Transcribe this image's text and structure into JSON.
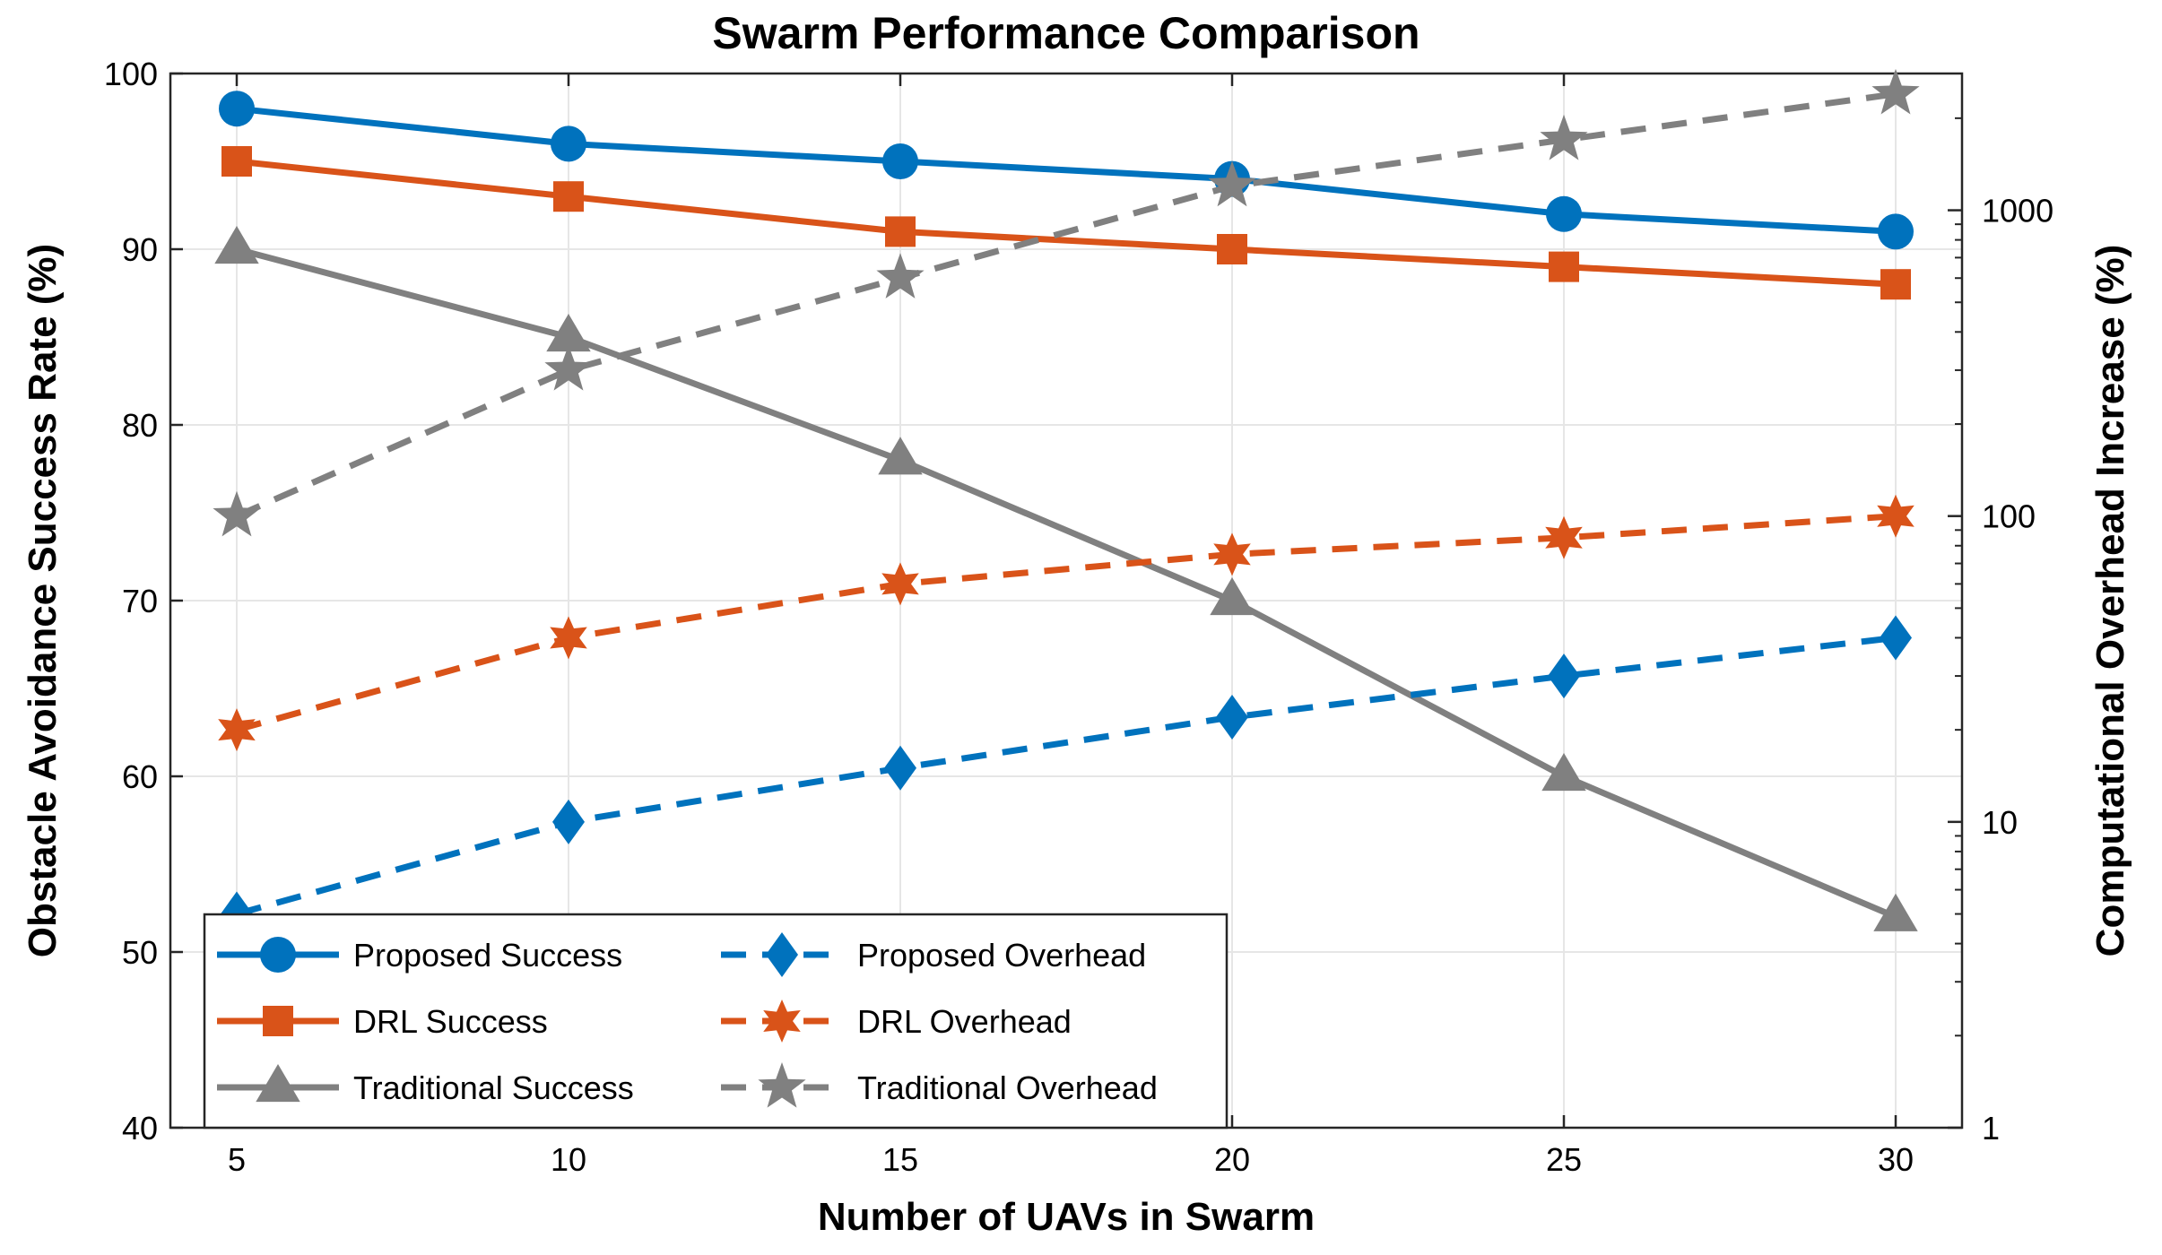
{
  "chart_data": {
    "type": "line",
    "title": "Swarm Performance Comparison",
    "xlabel": "Number of UAVs in Swarm",
    "ylabel_left": "Obstacle Avoidance Success Rate (%)",
    "ylabel_right": "Computational Overhead Increase (%)",
    "x": [
      5,
      10,
      15,
      20,
      25,
      30
    ],
    "x_ticks": [
      "5",
      "10",
      "15",
      "20",
      "25",
      "30"
    ],
    "xlim": [
      4,
      31
    ],
    "ylim_left": [
      40,
      100
    ],
    "y_ticks_left": [
      "40",
      "50",
      "60",
      "70",
      "80",
      "90",
      "100"
    ],
    "yscale_right": "log",
    "ylim_right": [
      1,
      2800
    ],
    "y_ticks_right": [
      "1",
      "10",
      "100",
      "1000"
    ],
    "grid": true,
    "legend_position": "bottom-left",
    "legend_columns": 2,
    "series": [
      {
        "name": "Proposed Success",
        "axis": "left",
        "values": [
          98,
          96,
          95,
          94,
          92,
          91
        ],
        "color": "#0072BD",
        "style": "solid",
        "marker": "circle"
      },
      {
        "name": "DRL Success",
        "axis": "left",
        "values": [
          95,
          93,
          91,
          90,
          89,
          88
        ],
        "color": "#D95319",
        "style": "solid",
        "marker": "square"
      },
      {
        "name": "Traditional Success",
        "axis": "left",
        "values": [
          90,
          85,
          78,
          70,
          60,
          52
        ],
        "color": "#808080",
        "style": "solid",
        "marker": "triangle"
      },
      {
        "name": "Proposed Overhead",
        "axis": "right",
        "values": [
          5,
          10,
          15,
          22,
          30,
          40
        ],
        "color": "#0072BD",
        "style": "dashed",
        "marker": "diamond"
      },
      {
        "name": "DRL Overhead",
        "axis": "right",
        "values": [
          20,
          40,
          60,
          75,
          85,
          100
        ],
        "color": "#D95319",
        "style": "dashed",
        "marker": "hexagram"
      },
      {
        "name": "Traditional Overhead",
        "axis": "right",
        "values": [
          100,
          300,
          600,
          1200,
          1700,
          2400
        ],
        "color": "#808080",
        "style": "dashed",
        "marker": "pentagram"
      }
    ]
  }
}
